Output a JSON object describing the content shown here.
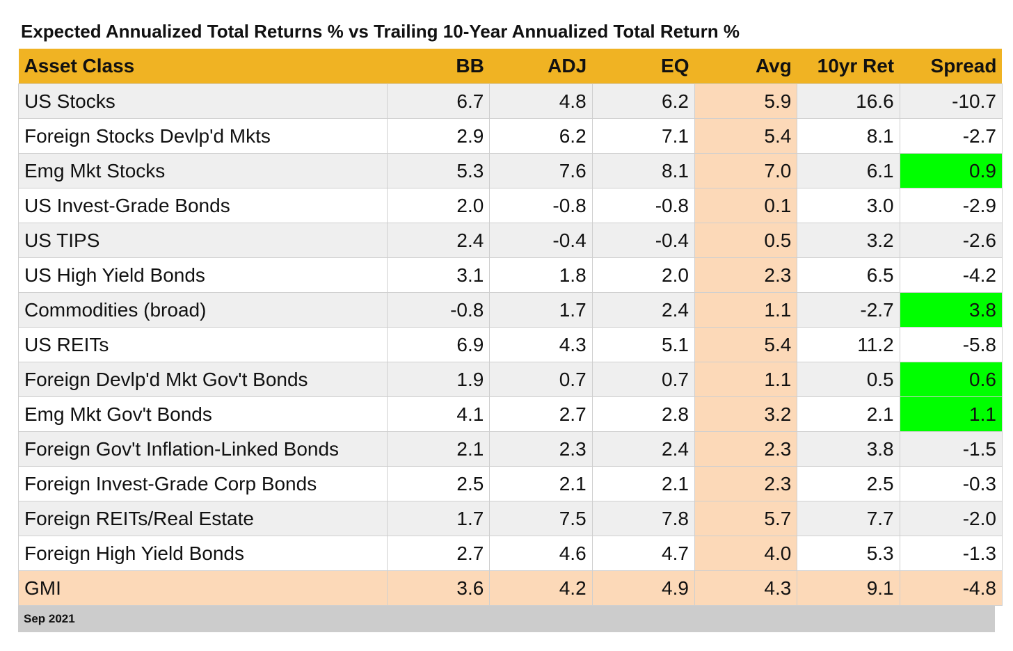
{
  "chart_data": {
    "type": "table",
    "title": "Expected Annualized Total Returns % vs Trailing 10-Year Annualized Total Return %",
    "columns": [
      "Asset Class",
      "BB",
      "ADJ",
      "EQ",
      "Avg",
      "10yr Ret",
      "Spread"
    ],
    "rows": [
      [
        "US Stocks",
        "6.7",
        "4.8",
        "6.2",
        "5.9",
        "16.6",
        "-10.7"
      ],
      [
        "Foreign Stocks Devlp'd Mkts",
        "2.9",
        "6.2",
        "7.1",
        "5.4",
        "8.1",
        "-2.7"
      ],
      [
        "Emg Mkt Stocks",
        "5.3",
        "7.6",
        "8.1",
        "7.0",
        "6.1",
        "0.9"
      ],
      [
        "US Invest-Grade Bonds",
        "2.0",
        "-0.8",
        "-0.8",
        "0.1",
        "3.0",
        "-2.9"
      ],
      [
        "US TIPS",
        "2.4",
        "-0.4",
        "-0.4",
        "0.5",
        "3.2",
        "-2.6"
      ],
      [
        "US High Yield Bonds",
        "3.1",
        "1.8",
        "2.0",
        "2.3",
        "6.5",
        "-4.2"
      ],
      [
        "Commodities (broad)",
        "-0.8",
        "1.7",
        "2.4",
        "1.1",
        "-2.7",
        "3.8"
      ],
      [
        "US REITs",
        "6.9",
        "4.3",
        "5.1",
        "5.4",
        "11.2",
        "-5.8"
      ],
      [
        "Foreign Devlp'd Mkt Gov't Bonds",
        "1.9",
        "0.7",
        "0.7",
        "1.1",
        "0.5",
        "0.6"
      ],
      [
        "Emg Mkt Gov't Bonds",
        "4.1",
        "2.7",
        "2.8",
        "3.2",
        "2.1",
        "1.1"
      ],
      [
        "Foreign Gov't Inflation-Linked Bonds",
        "2.1",
        "2.3",
        "2.4",
        "2.3",
        "3.8",
        "-1.5"
      ],
      [
        "Foreign Invest-Grade Corp Bonds",
        "2.5",
        "2.1",
        "2.1",
        "2.3",
        "2.5",
        "-0.3"
      ],
      [
        "Foreign REITs/Real Estate",
        "1.7",
        "7.5",
        "7.8",
        "5.7",
        "7.7",
        "-2.0"
      ],
      [
        "Foreign High Yield Bonds",
        "2.7",
        "4.6",
        "4.7",
        "4.0",
        "5.3",
        "-1.3"
      ],
      [
        "GMI",
        "3.6",
        "4.2",
        "4.9",
        "4.3",
        "9.1",
        "-4.8"
      ]
    ],
    "footer": "Sep 2021",
    "colors": {
      "header": "#f0b323",
      "avg_column": "#fcd9b8",
      "positive_spread": "#00ff00",
      "row_alt": "#efefef",
      "footer": "#cccccc"
    }
  }
}
